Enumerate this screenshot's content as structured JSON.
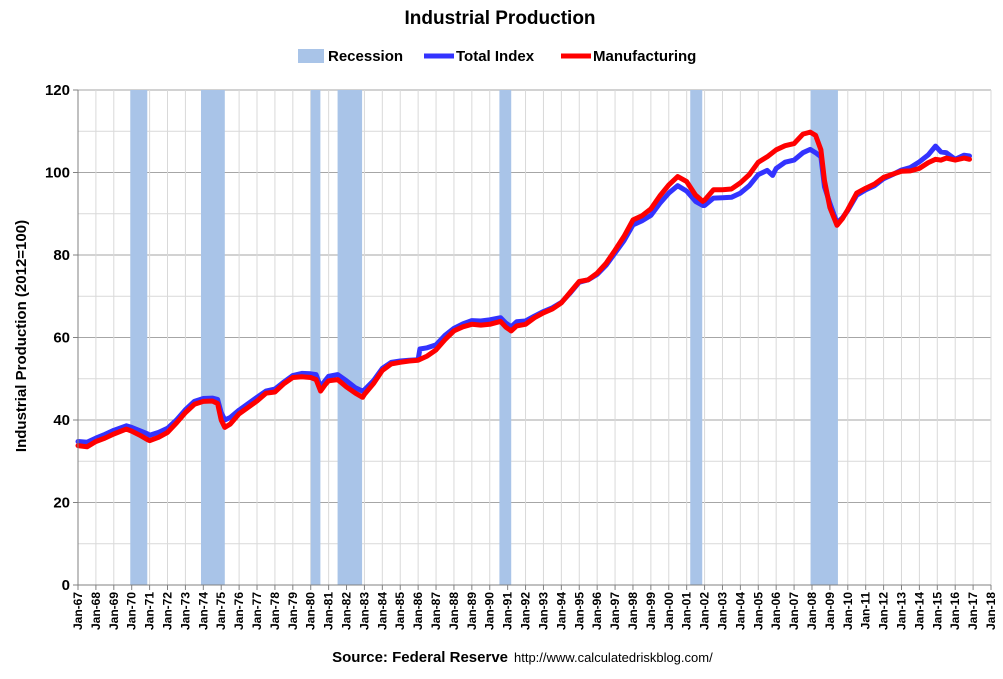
{
  "chart_data": {
    "type": "line",
    "title": "Industrial Production",
    "ylabel": "Industrial Production (2012=100)",
    "xlabel": "",
    "ylim": [
      0,
      120
    ],
    "yticks": [
      0,
      20,
      40,
      60,
      80,
      100,
      120
    ],
    "xlim": [
      1967,
      2018
    ],
    "grid": true,
    "legend": {
      "placement": "top-center",
      "items": [
        {
          "label": "Recession",
          "kind": "band",
          "color": "#a9c4e8"
        },
        {
          "label": "Total Index",
          "kind": "line",
          "color": "#3333ff"
        },
        {
          "label": "Manufacturing",
          "kind": "line",
          "color": "#ff0000"
        }
      ]
    },
    "x_tick_labels": [
      "Jan-67",
      "Jan-68",
      "Jan-69",
      "Jan-70",
      "Jan-71",
      "Jan-72",
      "Jan-73",
      "Jan-74",
      "Jan-75",
      "Jan-76",
      "Jan-77",
      "Jan-78",
      "Jan-79",
      "Jan-80",
      "Jan-81",
      "Jan-82",
      "Jan-83",
      "Jan-84",
      "Jan-85",
      "Jan-86",
      "Jan-87",
      "Jan-88",
      "Jan-89",
      "Jan-90",
      "Jan-91",
      "Jan-92",
      "Jan-93",
      "Jan-94",
      "Jan-95",
      "Jan-96",
      "Jan-97",
      "Jan-98",
      "Jan-99",
      "Jan-00",
      "Jan-01",
      "Jan-02",
      "Jan-03",
      "Jan-04",
      "Jan-05",
      "Jan-06",
      "Jan-07",
      "Jan-08",
      "Jan-09",
      "Jan-10",
      "Jan-11",
      "Jan-12",
      "Jan-13",
      "Jan-14",
      "Jan-15",
      "Jan-16",
      "Jan-17",
      "Jan-18"
    ],
    "recessions": [
      {
        "start": 1969.92,
        "end": 1970.87
      },
      {
        "start": 1973.87,
        "end": 1975.2
      },
      {
        "start": 1980.0,
        "end": 1980.54
      },
      {
        "start": 1981.5,
        "end": 1982.87
      },
      {
        "start": 1990.54,
        "end": 1991.2
      },
      {
        "start": 2001.2,
        "end": 2001.87
      },
      {
        "start": 2007.92,
        "end": 2009.45
      }
    ],
    "series": [
      {
        "name": "Total Index",
        "color": "#3333ff",
        "points": [
          [
            1967.0,
            34.8
          ],
          [
            1967.5,
            34.6
          ],
          [
            1968.0,
            35.6
          ],
          [
            1968.5,
            36.5
          ],
          [
            1969.0,
            37.5
          ],
          [
            1969.7,
            38.6
          ],
          [
            1970.0,
            38.2
          ],
          [
            1970.5,
            37.3
          ],
          [
            1970.9,
            36.6
          ],
          [
            1971.0,
            36.3
          ],
          [
            1971.5,
            37.0
          ],
          [
            1972.0,
            38.0
          ],
          [
            1972.5,
            40.0
          ],
          [
            1973.0,
            42.5
          ],
          [
            1973.5,
            44.5
          ],
          [
            1974.0,
            45.2
          ],
          [
            1974.5,
            45.3
          ],
          [
            1974.8,
            45.0
          ],
          [
            1975.0,
            41.8
          ],
          [
            1975.2,
            40.0
          ],
          [
            1975.5,
            40.6
          ],
          [
            1976.0,
            42.4
          ],
          [
            1977.0,
            45.5
          ],
          [
            1977.5,
            47.0
          ],
          [
            1978.0,
            47.5
          ],
          [
            1978.5,
            49.2
          ],
          [
            1979.0,
            50.8
          ],
          [
            1979.5,
            51.3
          ],
          [
            1980.0,
            51.2
          ],
          [
            1980.3,
            51.0
          ],
          [
            1980.55,
            48.0
          ],
          [
            1980.8,
            49.5
          ],
          [
            1981.0,
            50.6
          ],
          [
            1981.5,
            51.0
          ],
          [
            1982.0,
            49.5
          ],
          [
            1982.5,
            47.8
          ],
          [
            1982.9,
            47.0
          ],
          [
            1983.0,
            47.3
          ],
          [
            1983.5,
            49.5
          ],
          [
            1984.0,
            52.5
          ],
          [
            1984.5,
            54.0
          ],
          [
            1985.0,
            54.3
          ],
          [
            1985.5,
            54.5
          ],
          [
            1986.0,
            54.6
          ],
          [
            1986.1,
            57.2
          ],
          [
            1986.5,
            57.5
          ],
          [
            1987.0,
            58.2
          ],
          [
            1987.5,
            60.5
          ],
          [
            1988.0,
            62.2
          ],
          [
            1988.5,
            63.3
          ],
          [
            1989.0,
            64.1
          ],
          [
            1989.5,
            64.0
          ],
          [
            1990.0,
            64.3
          ],
          [
            1990.6,
            64.8
          ],
          [
            1990.9,
            63.5
          ],
          [
            1991.2,
            62.6
          ],
          [
            1991.5,
            63.8
          ],
          [
            1992.0,
            64.0
          ],
          [
            1992.5,
            65.2
          ],
          [
            1993.0,
            66.3
          ],
          [
            1993.5,
            67.2
          ],
          [
            1994.0,
            68.5
          ],
          [
            1994.5,
            70.8
          ],
          [
            1995.0,
            73.4
          ],
          [
            1995.5,
            74.0
          ],
          [
            1996.0,
            75.3
          ],
          [
            1996.5,
            77.5
          ],
          [
            1997.0,
            80.5
          ],
          [
            1997.5,
            83.5
          ],
          [
            1998.0,
            87.3
          ],
          [
            1998.5,
            88.3
          ],
          [
            1999.0,
            89.6
          ],
          [
            1999.5,
            92.5
          ],
          [
            2000.0,
            95.0
          ],
          [
            2000.5,
            96.8
          ],
          [
            2001.0,
            95.5
          ],
          [
            2001.5,
            93.0
          ],
          [
            2001.9,
            92.0
          ],
          [
            2002.0,
            92.0
          ],
          [
            2002.5,
            93.8
          ],
          [
            2003.0,
            93.9
          ],
          [
            2003.5,
            94.0
          ],
          [
            2004.0,
            95.0
          ],
          [
            2004.5,
            96.8
          ],
          [
            2005.0,
            99.5
          ],
          [
            2005.5,
            100.5
          ],
          [
            2005.8,
            99.3
          ],
          [
            2006.0,
            101.0
          ],
          [
            2006.5,
            102.5
          ],
          [
            2007.0,
            103.0
          ],
          [
            2007.5,
            104.8
          ],
          [
            2007.9,
            105.6
          ],
          [
            2008.2,
            104.8
          ],
          [
            2008.5,
            103.8
          ],
          [
            2008.7,
            96.5
          ],
          [
            2009.0,
            92.5
          ],
          [
            2009.4,
            87.8
          ],
          [
            2009.7,
            89.0
          ],
          [
            2010.0,
            90.8
          ],
          [
            2010.5,
            94.5
          ],
          [
            2011.0,
            95.8
          ],
          [
            2011.5,
            96.8
          ],
          [
            2012.0,
            98.5
          ],
          [
            2012.5,
            99.5
          ],
          [
            2013.0,
            100.6
          ],
          [
            2013.5,
            101.2
          ],
          [
            2014.0,
            102.6
          ],
          [
            2014.5,
            104.3
          ],
          [
            2014.9,
            106.4
          ],
          [
            2015.2,
            105.0
          ],
          [
            2015.5,
            104.8
          ],
          [
            2016.0,
            103.2
          ],
          [
            2016.5,
            104.2
          ],
          [
            2016.8,
            104.0
          ]
        ]
      },
      {
        "name": "Manufacturing",
        "color": "#ff0000",
        "points": [
          [
            1967.0,
            33.8
          ],
          [
            1967.5,
            33.5
          ],
          [
            1968.0,
            34.8
          ],
          [
            1968.5,
            35.6
          ],
          [
            1969.0,
            36.6
          ],
          [
            1969.7,
            37.8
          ],
          [
            1970.0,
            37.3
          ],
          [
            1970.5,
            36.2
          ],
          [
            1970.9,
            35.2
          ],
          [
            1971.0,
            35.0
          ],
          [
            1971.5,
            35.8
          ],
          [
            1972.0,
            37.0
          ],
          [
            1972.5,
            39.3
          ],
          [
            1973.0,
            41.8
          ],
          [
            1973.5,
            43.8
          ],
          [
            1974.0,
            44.5
          ],
          [
            1974.5,
            44.6
          ],
          [
            1974.8,
            44.0
          ],
          [
            1975.0,
            40.0
          ],
          [
            1975.2,
            38.2
          ],
          [
            1975.5,
            39.0
          ],
          [
            1976.0,
            41.5
          ],
          [
            1977.0,
            44.6
          ],
          [
            1977.5,
            46.5
          ],
          [
            1978.0,
            46.8
          ],
          [
            1978.5,
            48.8
          ],
          [
            1979.0,
            50.3
          ],
          [
            1979.5,
            50.5
          ],
          [
            1980.0,
            50.3
          ],
          [
            1980.3,
            49.8
          ],
          [
            1980.55,
            47.0
          ],
          [
            1980.8,
            48.5
          ],
          [
            1981.0,
            49.5
          ],
          [
            1981.5,
            49.8
          ],
          [
            1982.0,
            48.0
          ],
          [
            1982.5,
            46.5
          ],
          [
            1982.9,
            45.5
          ],
          [
            1983.0,
            46.2
          ],
          [
            1983.5,
            48.8
          ],
          [
            1984.0,
            52.0
          ],
          [
            1984.5,
            53.6
          ],
          [
            1985.0,
            54.0
          ],
          [
            1985.5,
            54.3
          ],
          [
            1986.0,
            54.5
          ],
          [
            1986.5,
            55.5
          ],
          [
            1987.0,
            57.0
          ],
          [
            1987.5,
            59.5
          ],
          [
            1988.0,
            61.6
          ],
          [
            1988.5,
            62.6
          ],
          [
            1989.0,
            63.2
          ],
          [
            1989.5,
            63.0
          ],
          [
            1990.0,
            63.2
          ],
          [
            1990.6,
            63.9
          ],
          [
            1990.9,
            62.5
          ],
          [
            1991.2,
            61.6
          ],
          [
            1991.5,
            62.8
          ],
          [
            1992.0,
            63.2
          ],
          [
            1992.5,
            64.8
          ],
          [
            1993.0,
            66.0
          ],
          [
            1993.5,
            66.9
          ],
          [
            1994.0,
            68.4
          ],
          [
            1994.5,
            71.0
          ],
          [
            1995.0,
            73.6
          ],
          [
            1995.5,
            74.0
          ],
          [
            1996.0,
            75.6
          ],
          [
            1996.5,
            78.0
          ],
          [
            1997.0,
            81.2
          ],
          [
            1997.5,
            84.5
          ],
          [
            1998.0,
            88.5
          ],
          [
            1998.5,
            89.5
          ],
          [
            1999.0,
            91.2
          ],
          [
            1999.5,
            94.3
          ],
          [
            2000.0,
            97.0
          ],
          [
            2000.5,
            99.0
          ],
          [
            2001.0,
            97.8
          ],
          [
            2001.5,
            94.5
          ],
          [
            2001.9,
            93.0
          ],
          [
            2002.0,
            93.3
          ],
          [
            2002.5,
            95.8
          ],
          [
            2003.0,
            95.8
          ],
          [
            2003.5,
            96.0
          ],
          [
            2004.0,
            97.5
          ],
          [
            2004.5,
            99.5
          ],
          [
            2005.0,
            102.5
          ],
          [
            2005.5,
            103.8
          ],
          [
            2006.0,
            105.5
          ],
          [
            2006.5,
            106.5
          ],
          [
            2007.0,
            107.0
          ],
          [
            2007.5,
            109.3
          ],
          [
            2007.9,
            109.8
          ],
          [
            2008.2,
            109.0
          ],
          [
            2008.5,
            105.5
          ],
          [
            2008.7,
            98.0
          ],
          [
            2009.0,
            91.5
          ],
          [
            2009.4,
            87.2
          ],
          [
            2009.7,
            88.8
          ],
          [
            2010.0,
            91.0
          ],
          [
            2010.5,
            95.0
          ],
          [
            2011.0,
            96.2
          ],
          [
            2011.5,
            97.2
          ],
          [
            2012.0,
            98.8
          ],
          [
            2012.5,
            99.6
          ],
          [
            2013.0,
            100.3
          ],
          [
            2013.5,
            100.4
          ],
          [
            2014.0,
            101.0
          ],
          [
            2014.5,
            102.4
          ],
          [
            2014.9,
            103.2
          ],
          [
            2015.2,
            103.0
          ],
          [
            2015.5,
            103.5
          ],
          [
            2016.0,
            103.0
          ],
          [
            2016.5,
            103.5
          ],
          [
            2016.8,
            103.2
          ]
        ]
      }
    ]
  },
  "source": {
    "label": "Source: Federal Reserve",
    "url": "http://www.calculatedriskblog.com/"
  }
}
